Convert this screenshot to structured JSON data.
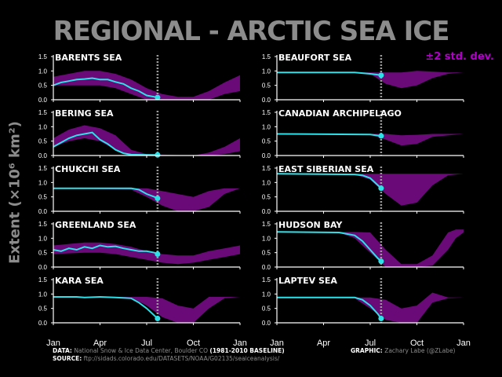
{
  "title": "REGIONAL - ARCTIC SEA ICE",
  "legend_label": "±2 std. dev.",
  "ylabel": "Extent (×10⁶ km²)",
  "colors": {
    "band": "#6a0a78",
    "line": "#2ee0e8",
    "legend": "#b000c8",
    "axis": "#ffffff",
    "title": "#8c8c8c"
  },
  "footer": {
    "data_prefix": "DATA:",
    "data_text": " National Snow & Ice Data Center, Boulder CO ",
    "baseline": "(1981-2010 BASELINE)",
    "source_prefix": "SOURCE:",
    "source_text": " ftp://sidads.colorado.edu/DATASETS/NOAA/G02135/seaiceanalysis/",
    "graphic_prefix": "GRAPHIC:",
    "graphic_text": " Zachary Labe (@ZLabe)"
  },
  "chart_data": {
    "type": "line",
    "x_ticks": [
      "Jan",
      "Apr",
      "Jul",
      "Oct",
      "Jan"
    ],
    "x_tick_months": [
      0,
      3,
      6,
      9,
      12
    ],
    "current_month": 6.7,
    "ylim": [
      0,
      1.5
    ],
    "y_ticks": [
      "0.0",
      "0.5",
      "1.0",
      "1.5"
    ],
    "panels": [
      {
        "name": "BARENTS SEA",
        "band": [
          [
            0,
            0.5,
            0.8
          ],
          [
            1,
            0.5,
            0.9
          ],
          [
            2,
            0.5,
            1.0
          ],
          [
            3,
            0.5,
            1.0
          ],
          [
            4,
            0.4,
            0.9
          ],
          [
            5,
            0.2,
            0.7
          ],
          [
            6,
            0.0,
            0.4
          ],
          [
            7,
            0.0,
            0.2
          ],
          [
            8,
            0.0,
            0.1
          ],
          [
            9,
            0.0,
            0.1
          ],
          [
            10,
            0.0,
            0.3
          ],
          [
            11,
            0.2,
            0.6
          ],
          [
            12,
            0.3,
            0.85
          ]
        ],
        "series": [
          [
            0,
            0.5
          ],
          [
            0.5,
            0.6
          ],
          [
            1,
            0.65
          ],
          [
            1.5,
            0.7
          ],
          [
            2,
            0.72
          ],
          [
            2.5,
            0.75
          ],
          [
            3,
            0.7
          ],
          [
            3.5,
            0.7
          ],
          [
            4,
            0.62
          ],
          [
            4.5,
            0.55
          ],
          [
            5,
            0.4
          ],
          [
            5.5,
            0.3
          ],
          [
            6,
            0.15
          ],
          [
            6.5,
            0.1
          ],
          [
            6.7,
            0.08
          ]
        ]
      },
      {
        "name": "BEAUFORT SEA",
        "band": [
          [
            0,
            0.95,
            0.95
          ],
          [
            5,
            0.93,
            0.95
          ],
          [
            6,
            0.9,
            0.95
          ],
          [
            7,
            0.55,
            0.95
          ],
          [
            8,
            0.4,
            0.95
          ],
          [
            9,
            0.5,
            1.0
          ],
          [
            10,
            0.75,
            0.98
          ],
          [
            11,
            0.9,
            0.95
          ],
          [
            12,
            0.95,
            0.95
          ]
        ],
        "series": [
          [
            0,
            0.95
          ],
          [
            5,
            0.95
          ],
          [
            6,
            0.9
          ],
          [
            6.7,
            0.85
          ]
        ]
      },
      {
        "name": "BERING SEA",
        "band": [
          [
            0,
            0.3,
            0.6
          ],
          [
            1,
            0.5,
            0.9
          ],
          [
            2,
            0.6,
            1.05
          ],
          [
            3,
            0.5,
            0.95
          ],
          [
            4,
            0.2,
            0.7
          ],
          [
            5,
            0.0,
            0.2
          ],
          [
            6,
            0.0,
            0.05
          ],
          [
            9,
            0.0,
            0.0
          ],
          [
            10,
            0.0,
            0.1
          ],
          [
            11,
            0.05,
            0.3
          ],
          [
            12,
            0.15,
            0.6
          ]
        ],
        "series": [
          [
            0,
            0.3
          ],
          [
            0.5,
            0.45
          ],
          [
            1,
            0.6
          ],
          [
            1.5,
            0.7
          ],
          [
            2,
            0.75
          ],
          [
            2.5,
            0.8
          ],
          [
            3,
            0.55
          ],
          [
            3.5,
            0.4
          ],
          [
            4,
            0.2
          ],
          [
            4.5,
            0.08
          ],
          [
            5,
            0.03
          ],
          [
            6,
            0.02
          ],
          [
            6.7,
            0.02
          ]
        ]
      },
      {
        "name": "CANADIAN ARCHIPELAGO",
        "band": [
          [
            0,
            0.75,
            0.75
          ],
          [
            6,
            0.72,
            0.75
          ],
          [
            7,
            0.55,
            0.75
          ],
          [
            8,
            0.35,
            0.7
          ],
          [
            9,
            0.4,
            0.72
          ],
          [
            10,
            0.65,
            0.75
          ],
          [
            12,
            0.75,
            0.75
          ]
        ],
        "series": [
          [
            0,
            0.75
          ],
          [
            6,
            0.73
          ],
          [
            6.7,
            0.68
          ]
        ]
      },
      {
        "name": "CHUKCHI SEA",
        "band": [
          [
            0,
            0.8,
            0.8
          ],
          [
            5,
            0.75,
            0.8
          ],
          [
            6,
            0.5,
            0.8
          ],
          [
            7,
            0.2,
            0.7
          ],
          [
            8,
            0.0,
            0.6
          ],
          [
            9,
            0.0,
            0.5
          ],
          [
            10,
            0.15,
            0.7
          ],
          [
            11,
            0.6,
            0.8
          ],
          [
            12,
            0.8,
            0.8
          ]
        ],
        "series": [
          [
            0,
            0.8
          ],
          [
            5,
            0.8
          ],
          [
            5.5,
            0.75
          ],
          [
            6,
            0.6
          ],
          [
            6.5,
            0.5
          ],
          [
            6.7,
            0.45
          ]
        ]
      },
      {
        "name": "EAST SIBERIAN SEA",
        "band": [
          [
            0,
            1.3,
            1.3
          ],
          [
            5,
            1.28,
            1.3
          ],
          [
            6,
            1.1,
            1.3
          ],
          [
            7,
            0.6,
            1.3
          ],
          [
            8,
            0.2,
            1.3
          ],
          [
            9,
            0.3,
            1.3
          ],
          [
            10,
            0.9,
            1.3
          ],
          [
            11,
            1.25,
            1.3
          ],
          [
            12,
            1.3,
            1.3
          ]
        ],
        "series": [
          [
            0,
            1.3
          ],
          [
            5,
            1.28
          ],
          [
            5.5,
            1.25
          ],
          [
            6,
            1.15
          ],
          [
            6.5,
            0.9
          ],
          [
            6.7,
            0.8
          ]
        ]
      },
      {
        "name": "GREENLAND SEA",
        "band": [
          [
            0,
            0.45,
            0.75
          ],
          [
            2,
            0.5,
            0.85
          ],
          [
            3,
            0.5,
            0.85
          ],
          [
            4,
            0.45,
            0.8
          ],
          [
            5,
            0.35,
            0.7
          ],
          [
            6,
            0.25,
            0.55
          ],
          [
            7,
            0.15,
            0.45
          ],
          [
            8,
            0.1,
            0.4
          ],
          [
            9,
            0.15,
            0.4
          ],
          [
            10,
            0.25,
            0.55
          ],
          [
            11,
            0.35,
            0.65
          ],
          [
            12,
            0.45,
            0.75
          ]
        ],
        "series": [
          [
            0,
            0.6
          ],
          [
            0.5,
            0.55
          ],
          [
            1,
            0.65
          ],
          [
            1.5,
            0.6
          ],
          [
            2,
            0.7
          ],
          [
            2.5,
            0.65
          ],
          [
            3,
            0.75
          ],
          [
            3.5,
            0.7
          ],
          [
            4,
            0.72
          ],
          [
            4.5,
            0.65
          ],
          [
            5,
            0.6
          ],
          [
            5.5,
            0.55
          ],
          [
            6,
            0.55
          ],
          [
            6.5,
            0.5
          ],
          [
            6.7,
            0.45
          ]
        ]
      },
      {
        "name": "HUDSON BAY",
        "band": [
          [
            0,
            1.22,
            1.22
          ],
          [
            4,
            1.2,
            1.22
          ],
          [
            5,
            1.0,
            1.22
          ],
          [
            6,
            0.5,
            1.2
          ],
          [
            7,
            0.0,
            0.6
          ],
          [
            8,
            0.0,
            0.1
          ],
          [
            9,
            0.0,
            0.1
          ],
          [
            10,
            0.05,
            0.4
          ],
          [
            11,
            0.6,
            1.2
          ],
          [
            11.5,
            1.0,
            1.3
          ],
          [
            12,
            1.2,
            1.3
          ]
        ],
        "series": [
          [
            0,
            1.22
          ],
          [
            4,
            1.2
          ],
          [
            5,
            1.1
          ],
          [
            5.5,
            0.9
          ],
          [
            6,
            0.6
          ],
          [
            6.5,
            0.3
          ],
          [
            6.7,
            0.2
          ]
        ]
      },
      {
        "name": "KARA SEA",
        "band": [
          [
            0,
            0.9,
            0.9
          ],
          [
            5,
            0.88,
            0.9
          ],
          [
            6,
            0.6,
            0.9
          ],
          [
            7,
            0.2,
            0.85
          ],
          [
            8,
            0.0,
            0.6
          ],
          [
            9,
            0.0,
            0.5
          ],
          [
            10,
            0.5,
            0.9
          ],
          [
            11,
            0.85,
            0.9
          ],
          [
            12,
            0.9,
            0.9
          ]
        ],
        "series": [
          [
            0,
            0.9
          ],
          [
            1.5,
            0.9
          ],
          [
            2,
            0.88
          ],
          [
            3,
            0.9
          ],
          [
            4,
            0.88
          ],
          [
            5,
            0.85
          ],
          [
            5.5,
            0.7
          ],
          [
            6,
            0.5
          ],
          [
            6.5,
            0.25
          ],
          [
            6.7,
            0.15
          ]
        ]
      },
      {
        "name": "LAPTEV SEA",
        "band": [
          [
            0,
            0.88,
            0.88
          ],
          [
            5,
            0.85,
            0.88
          ],
          [
            6,
            0.5,
            0.88
          ],
          [
            7,
            0.1,
            0.8
          ],
          [
            8,
            0.0,
            0.5
          ],
          [
            9,
            0.0,
            0.6
          ],
          [
            10,
            0.7,
            1.05
          ],
          [
            11,
            0.85,
            0.88
          ],
          [
            12,
            0.88,
            0.88
          ]
        ],
        "series": [
          [
            0,
            0.88
          ],
          [
            5,
            0.88
          ],
          [
            5.5,
            0.8
          ],
          [
            6,
            0.6
          ],
          [
            6.5,
            0.3
          ],
          [
            6.7,
            0.15
          ]
        ]
      }
    ]
  }
}
